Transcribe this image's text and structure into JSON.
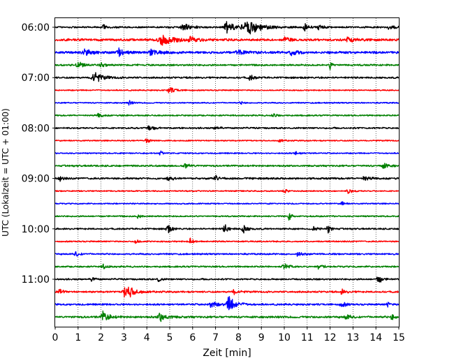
{
  "chart_data": {
    "type": "line",
    "title": "",
    "xlabel": "Zeit  [min]",
    "ylabel": "UTC (Lokalzeit = UTC + 01:00)",
    "xlim": [
      0,
      15
    ],
    "x_ticks": [
      "0",
      "1",
      "2",
      "3",
      "4",
      "5",
      "6",
      "7",
      "8",
      "9",
      "10",
      "11",
      "12",
      "13",
      "14",
      "15"
    ],
    "y_tick_labels": [
      "06:00",
      "07:00",
      "08:00",
      "09:00",
      "10:00",
      "11:00"
    ],
    "grid": "vertical-dotted",
    "trace_interval_minutes": 15,
    "start_time": "06:00",
    "trace_count": 24,
    "colors": [
      "#000000",
      "#ff0000",
      "#0000ff",
      "#008000"
    ],
    "traces": [
      {
        "time": "06:00",
        "color": "#000000",
        "noise": 0.1,
        "events": [
          [
            2.1,
            0.6,
            0.15
          ],
          [
            5.6,
            0.45,
            0.5
          ],
          [
            7.5,
            0.6,
            0.6
          ],
          [
            8.4,
            0.9,
            0.9
          ],
          [
            10.9,
            0.4,
            0.3
          ],
          [
            11.5,
            0.35,
            0.3
          ],
          [
            14.6,
            0.3,
            0.3
          ]
        ]
      },
      {
        "time": "06:15",
        "color": "#ff0000",
        "noise": 0.14,
        "events": [
          [
            4.7,
            0.75,
            0.7
          ],
          [
            5.9,
            0.35,
            0.4
          ],
          [
            10.0,
            0.3,
            0.3
          ],
          [
            12.8,
            0.35,
            0.4
          ]
        ]
      },
      {
        "time": "06:30",
        "color": "#0000ff",
        "noise": 0.14,
        "events": [
          [
            1.3,
            0.4,
            0.5
          ],
          [
            2.8,
            0.45,
            0.4
          ],
          [
            4.2,
            0.4,
            0.5
          ],
          [
            8.0,
            0.3,
            0.5
          ],
          [
            10.3,
            0.5,
            0.3
          ]
        ]
      },
      {
        "time": "06:45",
        "color": "#008000",
        "noise": 0.1,
        "events": [
          [
            1.0,
            0.35,
            0.4
          ],
          [
            2.0,
            0.3,
            0.3
          ],
          [
            12.0,
            0.55,
            0.15
          ]
        ]
      },
      {
        "time": "07:00",
        "color": "#000000",
        "noise": 0.1,
        "events": [
          [
            1.7,
            0.6,
            0.6
          ],
          [
            8.5,
            0.3,
            0.3
          ]
        ]
      },
      {
        "time": "07:15",
        "color": "#ff0000",
        "noise": 0.07,
        "events": [
          [
            5.0,
            0.35,
            0.4
          ]
        ]
      },
      {
        "time": "07:30",
        "color": "#0000ff",
        "noise": 0.07,
        "events": [
          [
            3.2,
            0.4,
            0.2
          ],
          [
            8.1,
            0.2,
            0.2
          ]
        ]
      },
      {
        "time": "07:45",
        "color": "#008000",
        "noise": 0.08,
        "events": [
          [
            1.9,
            0.25,
            0.3
          ],
          [
            9.5,
            0.2,
            0.3
          ]
        ]
      },
      {
        "time": "08:00",
        "color": "#000000",
        "noise": 0.09,
        "events": [
          [
            4.1,
            0.4,
            0.3
          ],
          [
            7.0,
            0.2,
            0.3
          ]
        ]
      },
      {
        "time": "08:15",
        "color": "#ff0000",
        "noise": 0.07,
        "events": [
          [
            4.0,
            0.25,
            0.3
          ],
          [
            9.8,
            0.2,
            0.3
          ]
        ]
      },
      {
        "time": "08:30",
        "color": "#0000ff",
        "noise": 0.07,
        "events": [
          [
            4.6,
            0.35,
            0.2
          ],
          [
            10.5,
            0.2,
            0.3
          ]
        ]
      },
      {
        "time": "08:45",
        "color": "#008000",
        "noise": 0.1,
        "events": [
          [
            5.7,
            0.3,
            0.4
          ],
          [
            14.3,
            0.35,
            0.4
          ]
        ]
      },
      {
        "time": "09:00",
        "color": "#000000",
        "noise": 0.11,
        "events": [
          [
            0.2,
            0.35,
            0.2
          ],
          [
            4.9,
            0.3,
            0.3
          ],
          [
            7.0,
            0.3,
            0.3
          ],
          [
            13.5,
            0.3,
            0.3
          ]
        ]
      },
      {
        "time": "09:15",
        "color": "#ff0000",
        "noise": 0.07,
        "events": [
          [
            10.0,
            0.3,
            0.2
          ],
          [
            12.8,
            0.3,
            0.3
          ]
        ]
      },
      {
        "time": "09:30",
        "color": "#0000ff",
        "noise": 0.07,
        "events": [
          [
            12.5,
            0.3,
            0.2
          ]
        ]
      },
      {
        "time": "09:45",
        "color": "#008000",
        "noise": 0.08,
        "events": [
          [
            3.6,
            0.3,
            0.2
          ],
          [
            10.2,
            0.85,
            0.15
          ]
        ]
      },
      {
        "time": "10:00",
        "color": "#000000",
        "noise": 0.09,
        "events": [
          [
            4.9,
            0.6,
            0.25
          ],
          [
            7.4,
            0.45,
            0.3
          ],
          [
            8.2,
            0.55,
            0.3
          ],
          [
            11.3,
            0.35,
            0.25
          ],
          [
            11.9,
            0.45,
            0.25
          ]
        ]
      },
      {
        "time": "10:15",
        "color": "#ff0000",
        "noise": 0.08,
        "events": [
          [
            3.5,
            0.35,
            0.2
          ],
          [
            5.9,
            0.45,
            0.2
          ]
        ]
      },
      {
        "time": "10:30",
        "color": "#0000ff",
        "noise": 0.09,
        "events": [
          [
            0.9,
            0.3,
            0.3
          ],
          [
            10.6,
            0.3,
            0.3
          ]
        ]
      },
      {
        "time": "10:45",
        "color": "#008000",
        "noise": 0.09,
        "events": [
          [
            2.1,
            0.25,
            0.3
          ],
          [
            10.0,
            0.35,
            0.4
          ],
          [
            11.5,
            0.3,
            0.3
          ]
        ]
      },
      {
        "time": "11:00",
        "color": "#000000",
        "noise": 0.09,
        "events": [
          [
            1.6,
            0.4,
            0.2
          ],
          [
            4.5,
            0.35,
            0.2
          ],
          [
            14.1,
            0.5,
            0.3
          ]
        ]
      },
      {
        "time": "11:15",
        "color": "#ff0000",
        "noise": 0.1,
        "events": [
          [
            0.2,
            0.45,
            0.2
          ],
          [
            3.1,
            0.95,
            0.6
          ],
          [
            7.8,
            0.3,
            0.3
          ],
          [
            12.5,
            0.3,
            0.3
          ]
        ]
      },
      {
        "time": "11:30",
        "color": "#0000ff",
        "noise": 0.1,
        "events": [
          [
            6.8,
            0.4,
            0.5
          ],
          [
            7.6,
            0.9,
            0.5
          ],
          [
            12.5,
            0.35,
            0.3
          ],
          [
            14.5,
            0.4,
            0.2
          ]
        ]
      },
      {
        "time": "11:45",
        "color": "#008000",
        "noise": 0.12,
        "events": [
          [
            2.1,
            0.65,
            0.4
          ],
          [
            4.6,
            0.6,
            0.45
          ],
          [
            12.7,
            0.35,
            0.3
          ],
          [
            14.7,
            0.6,
            0.15
          ]
        ]
      }
    ]
  }
}
